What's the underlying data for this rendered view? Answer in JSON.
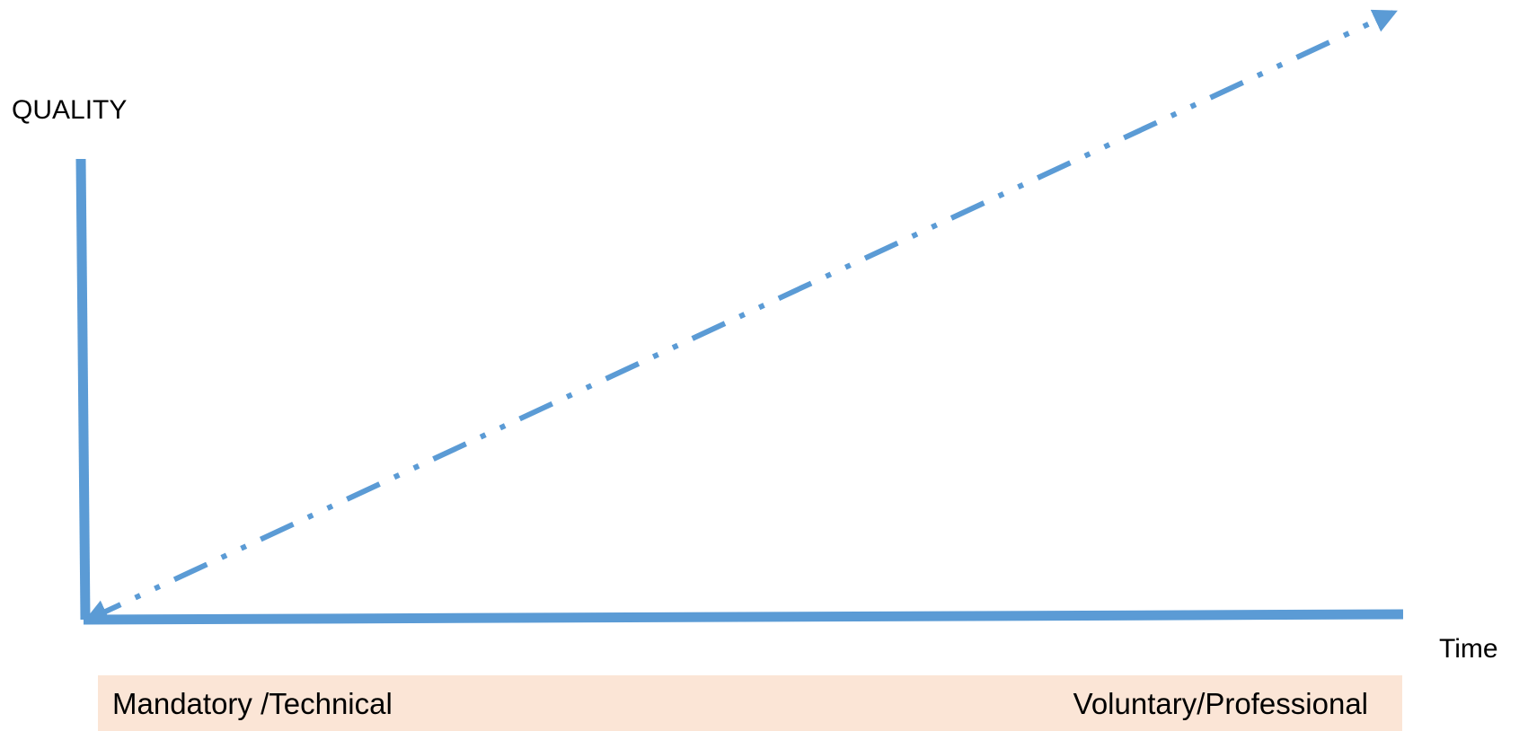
{
  "axes": {
    "y_label": "QUALITY",
    "x_label": "Time"
  },
  "band": {
    "left_text": "Mandatory /Technical",
    "right_text": "Voluntary/Professional"
  },
  "colors": {
    "line": "#5b9bd5",
    "band_fill": "#fbe5d6"
  }
}
